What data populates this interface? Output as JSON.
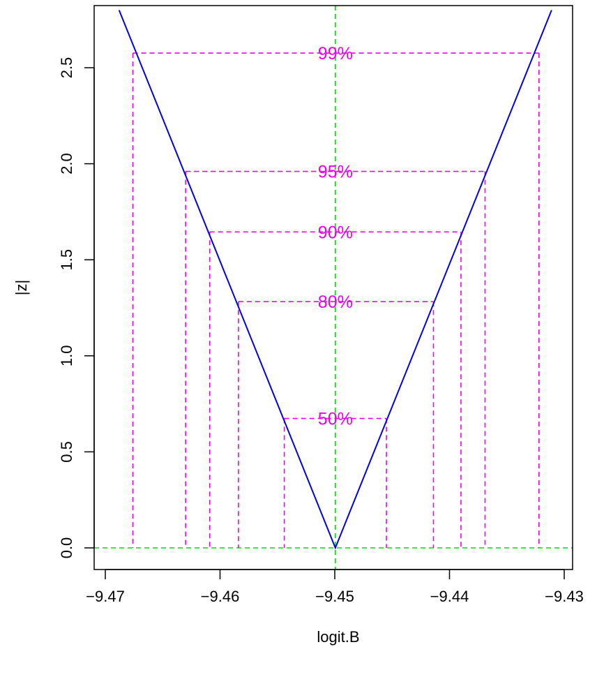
{
  "chart_data": {
    "type": "line",
    "title": "",
    "xlabel": "logit.B",
    "ylabel": "|z|",
    "xlim": [
      -9.47,
      -9.43
    ],
    "ylim": [
      0,
      2.8
    ],
    "x_ticks": [
      -9.47,
      -9.46,
      -9.45,
      -9.44,
      -9.43
    ],
    "x_tick_labels": [
      "−9.47",
      "−9.46",
      "−9.45",
      "−9.44",
      "−9.43"
    ],
    "y_ticks": [
      0.0,
      0.5,
      1.0,
      1.5,
      2.0,
      2.5
    ],
    "y_tick_labels": [
      "0.0",
      "0.5",
      "1.0",
      "1.5",
      "2.0",
      "2.5"
    ],
    "series": [
      {
        "color": "#0000ee",
        "x": [
          -9.4688,
          -9.44995,
          -9.4311
        ],
        "y": [
          2.8,
          0.0,
          2.8
        ]
      }
    ],
    "estimate": -9.44995,
    "reference_lines": {
      "vertical_x": -9.44995,
      "horizontal_y": 0.0,
      "color": "#00dd00"
    },
    "confidence_levels": [
      {
        "label": "50%",
        "z": 0.674,
        "lower": -9.4544,
        "upper": -9.4455
      },
      {
        "label": "80%",
        "z": 1.282,
        "lower": -9.4584,
        "upper": -9.4414
      },
      {
        "label": "90%",
        "z": 1.645,
        "lower": -9.4609,
        "upper": -9.439
      },
      {
        "label": "95%",
        "z": 1.96,
        "lower": -9.463,
        "upper": -9.4369
      },
      {
        "label": "99%",
        "z": 2.576,
        "lower": -9.4676,
        "upper": -9.4322
      }
    ],
    "level_color": "#ee00ee",
    "grid": false
  }
}
